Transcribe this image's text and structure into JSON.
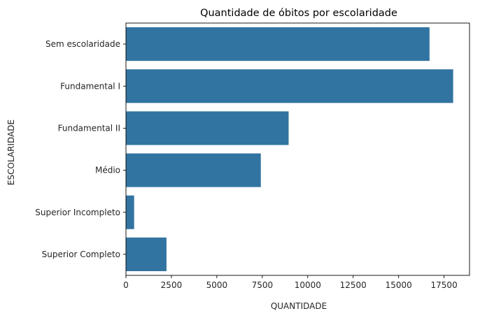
{
  "chart_data": {
    "type": "bar",
    "orientation": "horizontal",
    "title": "Quantidade de óbitos por escolaridade",
    "xlabel": "QUANTIDADE",
    "ylabel": "ESCOLARIDADE",
    "categories": [
      "Sem escolaridade",
      "Fundamental I",
      "Fundamental II",
      "Médio",
      "Superior Incompleto",
      "Superior Completo"
    ],
    "values": [
      16700,
      18000,
      8950,
      7420,
      450,
      2230
    ],
    "xlim": [
      0,
      18900
    ],
    "xticks": [
      0,
      2500,
      5000,
      7500,
      10000,
      12500,
      15000,
      17500
    ],
    "xtick_labels": [
      "0",
      "2500",
      "5000",
      "7500",
      "10000",
      "12500",
      "15000",
      "17500"
    ],
    "grid": false,
    "colors": {
      "bar": "#3274a1",
      "axis": "#000000",
      "text": "#262626"
    }
  }
}
